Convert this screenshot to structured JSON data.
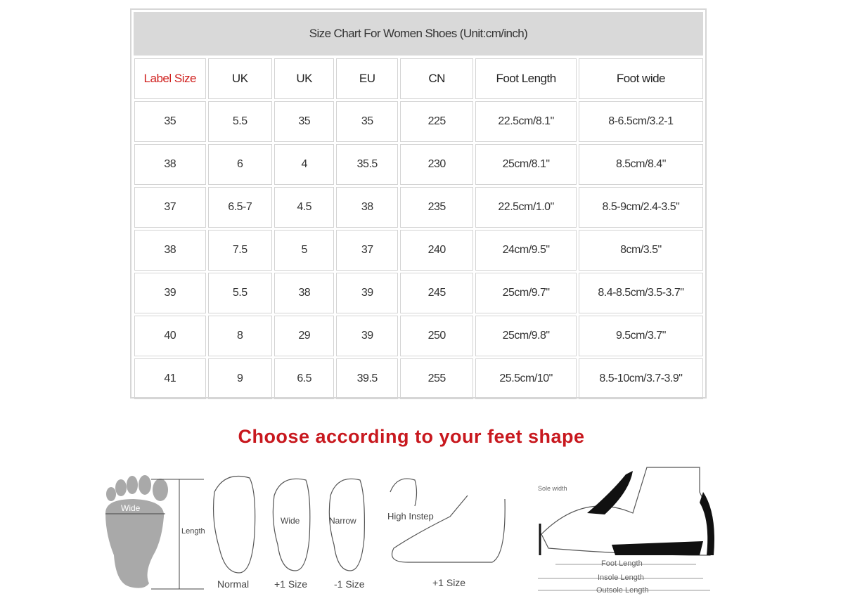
{
  "table": {
    "title": "Size Chart For Women Shoes (Unit:cm/inch)",
    "columns": [
      "Label Size",
      "UK",
      "UK",
      "EU",
      "CN",
      "Foot Length",
      "Foot wide"
    ],
    "rows": [
      [
        "35",
        "5.5",
        "35",
        "35",
        "225",
        "22.5cm/8.1\"",
        "8-6.5cm/3.2-1"
      ],
      [
        "38",
        "6",
        "4",
        "35.5",
        "230",
        "25cm/8.1\"",
        "8.5cm/8.4\""
      ],
      [
        "37",
        "6.5-7",
        "4.5",
        "38",
        "235",
        "22.5cm/1.0\"",
        "8.5-9cm/2.4-3.5\""
      ],
      [
        "38",
        "7.5",
        "5",
        "37",
        "240",
        "24cm/9.5\"",
        "8cm/3.5\""
      ],
      [
        "39",
        "5.5",
        "38",
        "39",
        "245",
        "25cm/9.7\"",
        "8.4-8.5cm/3.5-3.7\""
      ],
      [
        "40",
        "8",
        "29",
        "39",
        "250",
        "25cm/9.8\"",
        "9.5cm/3.7\""
      ],
      [
        "41",
        "9",
        "6.5",
        "39.5",
        "255",
        "25.5cm/10\"",
        "8.5-10cm/3.7-3.9\""
      ]
    ]
  },
  "heading": "Choose according  to your feet shape",
  "illustrations": {
    "wide": "Wide",
    "length": "Length",
    "normal": "Normal",
    "wide_foot": "Wide",
    "narrow_foot": "Narrow",
    "high_instep": "High Instep",
    "size_wide": "+1 Size",
    "size_narrow": "-1 Size",
    "size_instep": "+1 Size",
    "heel_height": "Sole width",
    "foot_length": "Foot Length",
    "insole_length": "Insole Length",
    "outsole_length": "Outsole Length"
  },
  "colors": {
    "accent_red": "#c8181e",
    "title_bg": "#d9d9d9"
  }
}
